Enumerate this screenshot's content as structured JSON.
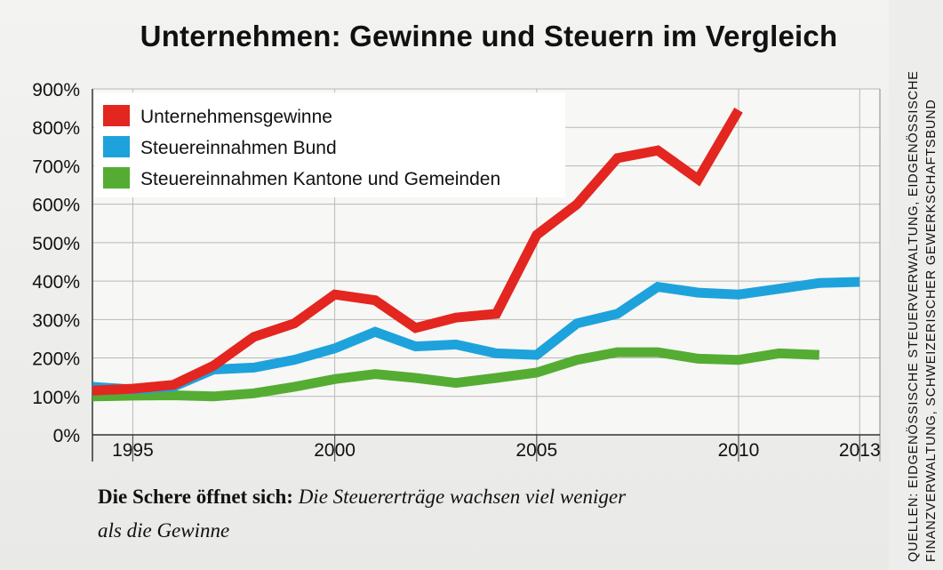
{
  "chart_data": {
    "type": "line",
    "title": "Unternehmen: Gewinne und Steuern im Vergleich",
    "xlabel": "",
    "ylabel": "",
    "x_ticks": [
      "1995",
      "2000",
      "2005",
      "2010",
      "2013"
    ],
    "y_ticks": [
      "0%",
      "100%",
      "200%",
      "300%",
      "400%",
      "500%",
      "600%",
      "700%",
      "800%",
      "900%"
    ],
    "ylim": [
      0,
      900
    ],
    "xlim": [
      1994,
      2013.5
    ],
    "legend_position": "top-left",
    "series": [
      {
        "name": "Unternehmensgewinne",
        "color": "#e3261f",
        "points": [
          [
            1994,
            115
          ],
          [
            1995,
            120
          ],
          [
            1996,
            130
          ],
          [
            1997,
            180
          ],
          [
            1998,
            255
          ],
          [
            1999,
            290
          ],
          [
            2000,
            365
          ],
          [
            2001,
            350
          ],
          [
            2002,
            278
          ],
          [
            2003,
            305
          ],
          [
            2004,
            315
          ],
          [
            2005,
            520
          ],
          [
            2006,
            600
          ],
          [
            2007,
            720
          ],
          [
            2008,
            740
          ],
          [
            2009,
            665
          ],
          [
            2010,
            845
          ]
        ]
      },
      {
        "name": "Steuereinnahmen Bund",
        "color": "#1ea2dc",
        "points": [
          [
            1994,
            125
          ],
          [
            1995,
            118
          ],
          [
            1996,
            125
          ],
          [
            1997,
            170
          ],
          [
            1998,
            175
          ],
          [
            1999,
            195
          ],
          [
            2000,
            225
          ],
          [
            2001,
            268
          ],
          [
            2002,
            230
          ],
          [
            2003,
            235
          ],
          [
            2004,
            212
          ],
          [
            2005,
            208
          ],
          [
            2006,
            290
          ],
          [
            2007,
            315
          ],
          [
            2008,
            385
          ],
          [
            2009,
            370
          ],
          [
            2010,
            365
          ],
          [
            2011,
            380
          ],
          [
            2012,
            395
          ],
          [
            2013,
            398
          ]
        ]
      },
      {
        "name": "Steuereinnahmen Kantone und Gemeinden",
        "color": "#55ac33",
        "points": [
          [
            1994,
            100
          ],
          [
            1995,
            102
          ],
          [
            1996,
            103
          ],
          [
            1997,
            100
          ],
          [
            1998,
            108
          ],
          [
            1999,
            125
          ],
          [
            2000,
            145
          ],
          [
            2001,
            158
          ],
          [
            2002,
            148
          ],
          [
            2003,
            135
          ],
          [
            2004,
            148
          ],
          [
            2005,
            162
          ],
          [
            2006,
            195
          ],
          [
            2007,
            215
          ],
          [
            2008,
            215
          ],
          [
            2009,
            198
          ],
          [
            2010,
            195
          ],
          [
            2011,
            212
          ],
          [
            2012,
            208
          ]
        ]
      }
    ]
  },
  "caption": {
    "lead": "Die Schere öffnet sich:",
    "line1": "Die Steuererträge wachsen viel weniger",
    "line2": "als die Gewinne"
  },
  "source": {
    "line1": "QUELLEN: EIDGENÖSSISCHE STEUERVERWALTUNG, EIDGENÖSSISCHE",
    "line2": "FINANZVERWALTUNG, SCHWEIZERISCHER GEWERKSCHAFTSBUND"
  }
}
